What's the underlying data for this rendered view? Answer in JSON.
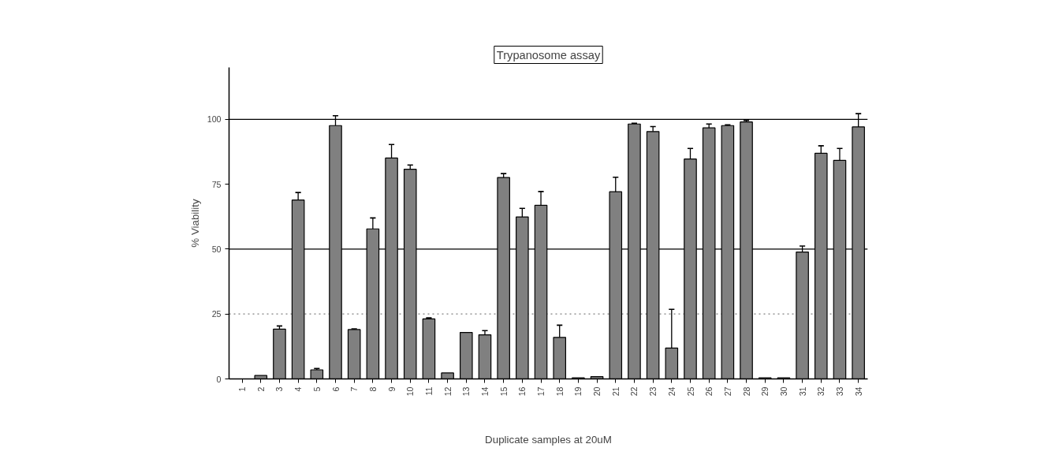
{
  "chart_data": {
    "type": "bar",
    "title": "Trypanosome assay",
    "xlabel": "Duplicate samples at 20uM",
    "ylabel": "% Viability",
    "categories": [
      "1",
      "2",
      "3",
      "4",
      "5",
      "6",
      "7",
      "8",
      "9",
      "10",
      "11",
      "12",
      "13",
      "14",
      "15",
      "16",
      "17",
      "18",
      "19",
      "20",
      "21",
      "22",
      "23",
      "24",
      "25",
      "26",
      "27",
      "28",
      "29",
      "30",
      "31",
      "32",
      "33",
      "34"
    ],
    "values": [
      null,
      1.3,
      19.2,
      68.9,
      3.5,
      97.6,
      19.0,
      57.8,
      85.1,
      80.8,
      23.1,
      2.3,
      17.9,
      17.0,
      77.6,
      62.4,
      66.9,
      16.0,
      0.4,
      0.9,
      72.1,
      98.2,
      95.3,
      11.9,
      84.7,
      96.7,
      97.6,
      99.0,
      0.4,
      0.4,
      48.9,
      86.9,
      84.2,
      97.1
    ],
    "errors": [
      null,
      null,
      [
        19.2,
        20.4
      ],
      [
        68.9,
        71.8
      ],
      [
        3.5,
        4.0
      ],
      [
        97.6,
        101.4
      ],
      [
        19.0,
        19.3
      ],
      [
        57.8,
        62.0
      ],
      [
        85.1,
        90.3
      ],
      [
        80.8,
        82.4
      ],
      [
        23.1,
        23.5
      ],
      null,
      null,
      [
        17.0,
        18.6
      ],
      [
        77.6,
        79.1
      ],
      [
        62.4,
        65.7
      ],
      [
        66.9,
        72.2
      ],
      [
        16.0,
        20.7
      ],
      null,
      null,
      [
        72.1,
        77.7
      ],
      [
        98.2,
        98.5
      ],
      [
        95.3,
        97.2
      ],
      [
        11.9,
        26.8
      ],
      [
        84.7,
        88.8
      ],
      [
        96.7,
        98.2
      ],
      [
        97.6,
        97.9
      ],
      [
        99.0,
        99.6
      ],
      null,
      null,
      [
        48.9,
        51.2
      ],
      [
        86.9,
        89.8
      ],
      [
        84.2,
        88.8
      ],
      [
        97.1,
        102.2
      ]
    ],
    "color": "#808080",
    "ylim": [
      0,
      120
    ],
    "yticks": [
      0,
      25,
      50,
      75,
      100
    ],
    "ref_lines": [
      {
        "axis": "y",
        "value": 100,
        "label": null,
        "color": "#000000",
        "line_style": "solid"
      },
      {
        "axis": "y",
        "value": 50,
        "label": null,
        "color": "#000000",
        "line_style": "solid"
      },
      {
        "axis": "y",
        "value": 25,
        "label": null,
        "color": "#808080",
        "line_style": "dotted"
      }
    ],
    "grid": false
  }
}
